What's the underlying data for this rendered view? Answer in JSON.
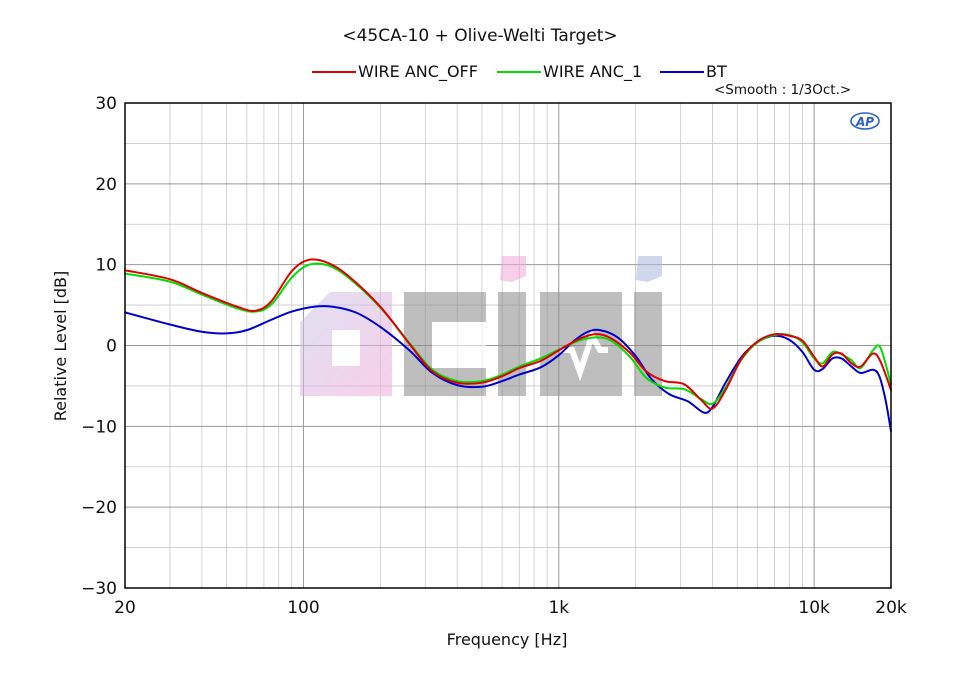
{
  "chart_data": {
    "type": "line",
    "title": "<45CA-10 + Olive-Welti Target>",
    "subtitle": "<Smooth : 1/3Oct.>",
    "xlabel": "Frequency [Hz]",
    "ylabel": "Relative Level [dB]",
    "xscale": "log",
    "xlim": [
      20,
      20000
    ],
    "ylim": [
      -30,
      30
    ],
    "xticks": [
      {
        "value": 20,
        "label": "20"
      },
      {
        "value": 100,
        "label": "100"
      },
      {
        "value": 1000,
        "label": "1k"
      },
      {
        "value": 10000,
        "label": "10k"
      },
      {
        "value": 20000,
        "label": "20k"
      }
    ],
    "yticks": [
      {
        "value": 30,
        "label": "30"
      },
      {
        "value": 20,
        "label": "20"
      },
      {
        "value": 10,
        "label": "10"
      },
      {
        "value": 0,
        "label": "0"
      },
      {
        "value": -10,
        "label": "-10"
      },
      {
        "value": -20,
        "label": "-20"
      },
      {
        "value": -30,
        "label": "-30"
      }
    ],
    "grid": true,
    "legend_position": "top",
    "series": [
      {
        "name": "WIRE ANC_OFF",
        "color": "#e00000",
        "points": [
          [
            20,
            9.3
          ],
          [
            30,
            8.2
          ],
          [
            40,
            6.5
          ],
          [
            55,
            4.8
          ],
          [
            65,
            4.3
          ],
          [
            75,
            5.5
          ],
          [
            90,
            9.2
          ],
          [
            105,
            10.6
          ],
          [
            125,
            10.2
          ],
          [
            150,
            8.6
          ],
          [
            200,
            4.8
          ],
          [
            260,
            0.2
          ],
          [
            320,
            -3.2
          ],
          [
            400,
            -4.6
          ],
          [
            500,
            -4.6
          ],
          [
            600,
            -3.8
          ],
          [
            700,
            -2.8
          ],
          [
            850,
            -1.9
          ],
          [
            1000,
            -0.6
          ],
          [
            1200,
            0.8
          ],
          [
            1400,
            1.4
          ],
          [
            1600,
            0.9
          ],
          [
            1900,
            -0.9
          ],
          [
            2200,
            -3.2
          ],
          [
            2600,
            -4.4
          ],
          [
            3100,
            -4.8
          ],
          [
            3600,
            -6.7
          ],
          [
            4000,
            -7.8
          ],
          [
            4500,
            -5.5
          ],
          [
            5200,
            -1.6
          ],
          [
            6000,
            0.5
          ],
          [
            7000,
            1.4
          ],
          [
            8000,
            1.2
          ],
          [
            9000,
            0.6
          ],
          [
            10000,
            -1.4
          ],
          [
            10800,
            -2.6
          ],
          [
            11800,
            -1.1
          ],
          [
            12800,
            -1.0
          ],
          [
            14000,
            -2.2
          ],
          [
            15200,
            -2.6
          ],
          [
            17000,
            -1.0
          ],
          [
            18200,
            -2.0
          ],
          [
            20000,
            -5.5
          ]
        ]
      },
      {
        "name": "WIRE ANC_1",
        "color": "#00dd00",
        "points": [
          [
            20,
            8.9
          ],
          [
            30,
            7.9
          ],
          [
            40,
            6.3
          ],
          [
            55,
            4.6
          ],
          [
            65,
            4.2
          ],
          [
            75,
            5.1
          ],
          [
            90,
            8.4
          ],
          [
            105,
            10.0
          ],
          [
            125,
            9.9
          ],
          [
            150,
            8.4
          ],
          [
            200,
            4.7
          ],
          [
            260,
            0.3
          ],
          [
            320,
            -3.0
          ],
          [
            400,
            -4.4
          ],
          [
            500,
            -4.4
          ],
          [
            600,
            -3.6
          ],
          [
            700,
            -2.6
          ],
          [
            850,
            -1.6
          ],
          [
            1000,
            -0.5
          ],
          [
            1200,
            0.6
          ],
          [
            1400,
            1.0
          ],
          [
            1600,
            0.6
          ],
          [
            1900,
            -1.4
          ],
          [
            2200,
            -4.0
          ],
          [
            2600,
            -5.2
          ],
          [
            3100,
            -5.4
          ],
          [
            3600,
            -6.6
          ],
          [
            4000,
            -7.2
          ],
          [
            4500,
            -5.2
          ],
          [
            5200,
            -1.7
          ],
          [
            6000,
            0.4
          ],
          [
            7000,
            1.3
          ],
          [
            8000,
            1.3
          ],
          [
            9000,
            0.4
          ],
          [
            10000,
            -1.6
          ],
          [
            10800,
            -2.2
          ],
          [
            11800,
            -0.8
          ],
          [
            12800,
            -1.1
          ],
          [
            14000,
            -1.8
          ],
          [
            15200,
            -2.8
          ],
          [
            17000,
            -0.6
          ],
          [
            18200,
            -0.3
          ],
          [
            20000,
            -4.8
          ]
        ]
      },
      {
        "name": "BT",
        "color": "#0000cc",
        "points": [
          [
            20,
            4.1
          ],
          [
            30,
            2.6
          ],
          [
            40,
            1.7
          ],
          [
            50,
            1.5
          ],
          [
            60,
            1.9
          ],
          [
            75,
            3.2
          ],
          [
            90,
            4.2
          ],
          [
            110,
            4.8
          ],
          [
            130,
            4.8
          ],
          [
            160,
            4.1
          ],
          [
            200,
            2.3
          ],
          [
            260,
            -0.6
          ],
          [
            320,
            -3.4
          ],
          [
            400,
            -4.9
          ],
          [
            500,
            -5.1
          ],
          [
            600,
            -4.4
          ],
          [
            700,
            -3.6
          ],
          [
            850,
            -2.7
          ],
          [
            1000,
            -1.2
          ],
          [
            1150,
            0.6
          ],
          [
            1300,
            1.7
          ],
          [
            1450,
            1.9
          ],
          [
            1700,
            1.0
          ],
          [
            2000,
            -1.3
          ],
          [
            2300,
            -4.1
          ],
          [
            2700,
            -6.0
          ],
          [
            3200,
            -6.9
          ],
          [
            3700,
            -8.3
          ],
          [
            4000,
            -7.6
          ],
          [
            4500,
            -4.6
          ],
          [
            5200,
            -1.4
          ],
          [
            6000,
            0.4
          ],
          [
            7000,
            1.2
          ],
          [
            8000,
            0.7
          ],
          [
            9000,
            -0.8
          ],
          [
            10000,
            -3.0
          ],
          [
            10800,
            -2.9
          ],
          [
            11800,
            -1.6
          ],
          [
            12800,
            -1.6
          ],
          [
            14000,
            -2.6
          ],
          [
            15200,
            -3.4
          ],
          [
            17000,
            -3.0
          ],
          [
            18000,
            -3.8
          ],
          [
            19000,
            -6.6
          ],
          [
            20000,
            -10.6
          ]
        ]
      }
    ]
  },
  "watermarks": {
    "ap_logo": "AP",
    "site_logo": "ociai"
  }
}
